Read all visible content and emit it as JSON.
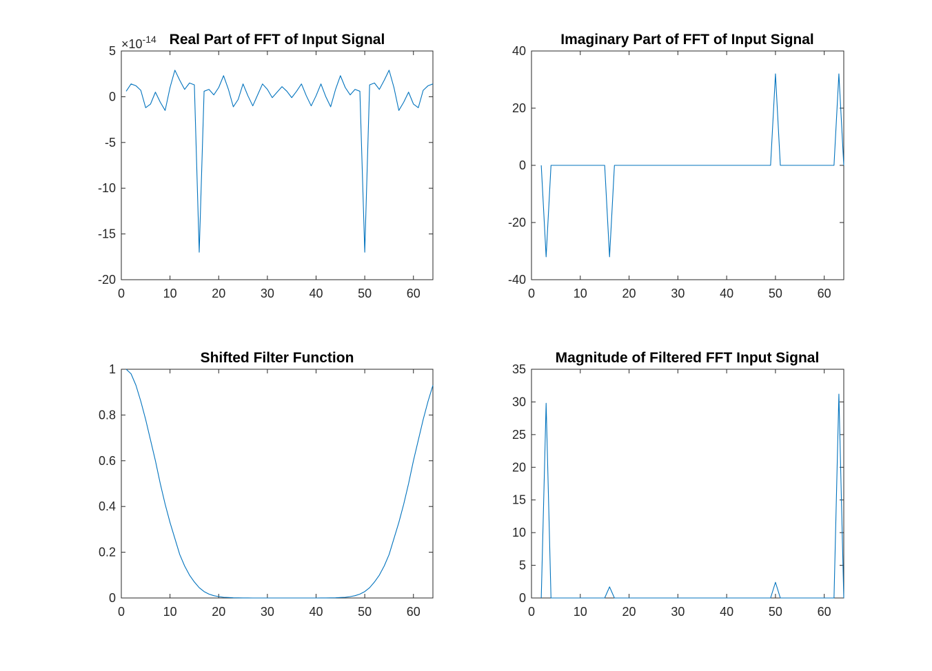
{
  "figure": {
    "background": "#ffffff",
    "line_color": "#0072bd"
  },
  "chart_data": [
    {
      "type": "line",
      "title": "Real Part of FFT of Input Signal",
      "xlabel": "",
      "ylabel": "",
      "xlim": [
        0,
        64
      ],
      "ylim": [
        -20,
        5
      ],
      "xticks": [
        0,
        10,
        20,
        30,
        40,
        50,
        60
      ],
      "yticks": [
        -20,
        -15,
        -10,
        -5,
        0,
        5
      ],
      "exponent_label": "×10",
      "exponent_power": "-14",
      "grid": false,
      "legend": "none",
      "x": [
        1,
        2,
        3,
        4,
        5,
        6,
        7,
        8,
        9,
        10,
        11,
        12,
        13,
        14,
        15,
        16,
        17,
        18,
        19,
        20,
        21,
        22,
        23,
        24,
        25,
        26,
        27,
        28,
        29,
        30,
        31,
        32,
        33,
        34,
        35,
        36,
        37,
        38,
        39,
        40,
        41,
        42,
        43,
        44,
        45,
        46,
        47,
        48,
        49,
        50,
        51,
        52,
        53,
        54,
        55,
        56,
        57,
        58,
        59,
        60,
        61,
        62,
        63,
        64
      ],
      "series": [
        {
          "values": [
            0.6,
            1.4,
            1.2,
            0.7,
            -1.2,
            -0.8,
            0.5,
            -0.6,
            -1.5,
            1.0,
            2.9,
            1.8,
            0.8,
            1.5,
            1.3,
            -17.0,
            0.6,
            0.8,
            0.2,
            1.0,
            2.3,
            0.8,
            -1.1,
            -0.3,
            1.4,
            0.1,
            -1.0,
            0.2,
            1.4,
            0.8,
            -0.1,
            0.5,
            1.1,
            0.6,
            -0.1,
            0.6,
            1.4,
            0.1,
            -1.0,
            0.1,
            1.4,
            0.0,
            -1.1,
            0.8,
            2.3,
            1.0,
            0.2,
            0.8,
            0.6,
            -17.0,
            1.3,
            1.5,
            0.8,
            1.8,
            2.9,
            1.0,
            -1.5,
            -0.6,
            0.5,
            -0.8,
            -1.2,
            0.7,
            1.2,
            1.4
          ]
        }
      ]
    },
    {
      "type": "line",
      "title": "Imaginary Part of FFT of Input Signal",
      "xlabel": "",
      "ylabel": "",
      "xlim": [
        0,
        64
      ],
      "ylim": [
        -40,
        40
      ],
      "xticks": [
        0,
        10,
        20,
        30,
        40,
        50,
        60
      ],
      "yticks": [
        -40,
        -20,
        0,
        20,
        40
      ],
      "grid": false,
      "legend": "none",
      "x": [
        2,
        3,
        4,
        5,
        15,
        16,
        17,
        18,
        49,
        50,
        51,
        52,
        62,
        63,
        64
      ],
      "series": [
        {
          "values": [
            0,
            -32,
            0,
            0,
            0,
            -32,
            0,
            0,
            0,
            32,
            0,
            0,
            0,
            32,
            0
          ]
        }
      ]
    },
    {
      "type": "line",
      "title": "Shifted Filter Function",
      "xlabel": "",
      "ylabel": "",
      "xlim": [
        0,
        64
      ],
      "ylim": [
        0,
        1
      ],
      "xticks": [
        0,
        10,
        20,
        30,
        40,
        50,
        60
      ],
      "yticks": [
        0,
        0.2,
        0.4,
        0.6,
        0.8,
        1
      ],
      "grid": false,
      "legend": "none",
      "x": [
        1,
        2,
        3,
        4,
        5,
        6,
        7,
        8,
        9,
        10,
        11,
        12,
        13,
        14,
        15,
        16,
        17,
        18,
        19,
        20,
        21,
        22,
        23,
        24,
        25,
        26,
        27,
        28,
        29,
        30,
        31,
        32,
        33,
        34,
        35,
        36,
        37,
        38,
        39,
        40,
        41,
        42,
        43,
        44,
        45,
        46,
        47,
        48,
        49,
        50,
        51,
        52,
        53,
        54,
        55,
        56,
        57,
        58,
        59,
        60,
        61,
        62,
        63,
        64
      ],
      "series": [
        {
          "values": [
            1.0,
            0.98,
            0.93,
            0.86,
            0.78,
            0.69,
            0.6,
            0.5,
            0.41,
            0.33,
            0.26,
            0.19,
            0.14,
            0.1,
            0.07,
            0.045,
            0.028,
            0.017,
            0.01,
            0.006,
            0.003,
            0.002,
            0.001,
            0.0005,
            0.0002,
            0.0001,
            0.0,
            0.0,
            0.0,
            0.0,
            0.0,
            0.0,
            0.0,
            0.0,
            0.0,
            0.0,
            0.0,
            0.0,
            0.0,
            0.0,
            0.0001,
            0.0002,
            0.0005,
            0.001,
            0.002,
            0.003,
            0.006,
            0.01,
            0.017,
            0.028,
            0.045,
            0.07,
            0.1,
            0.14,
            0.19,
            0.26,
            0.33,
            0.41,
            0.5,
            0.6,
            0.69,
            0.78,
            0.86,
            0.93
          ]
        }
      ]
    },
    {
      "type": "line",
      "title": "Magnitude of Filtered FFT Input Signal",
      "xlabel": "",
      "ylabel": "",
      "xlim": [
        0,
        64
      ],
      "ylim": [
        0,
        35
      ],
      "xticks": [
        0,
        10,
        20,
        30,
        40,
        50,
        60
      ],
      "yticks": [
        0,
        5,
        10,
        15,
        20,
        25,
        30,
        35
      ],
      "grid": false,
      "legend": "none",
      "x": [
        2,
        3,
        4,
        5,
        15,
        16,
        17,
        18,
        49,
        50,
        51,
        52,
        62,
        63,
        64
      ],
      "series": [
        {
          "values": [
            0,
            29.8,
            0,
            0,
            0,
            1.7,
            0,
            0,
            0,
            2.4,
            0,
            0,
            0,
            31.2,
            0
          ]
        }
      ]
    }
  ]
}
